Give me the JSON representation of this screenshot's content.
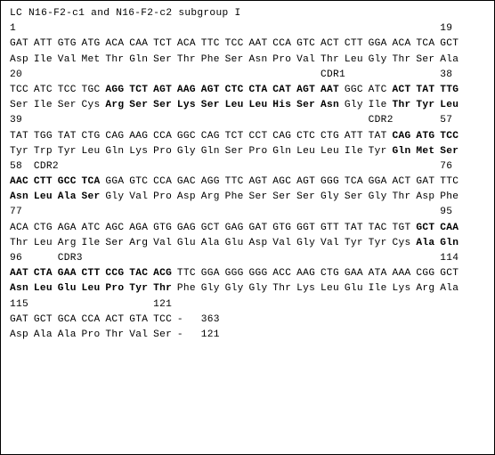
{
  "title": "LC N16-F2-c1 and N16-F2-c2 subgroup I",
  "cdr_labels": {
    "cdr1": "CDR1",
    "cdr2": "CDR2",
    "cdr3": "CDR3"
  },
  "blocks": [
    {
      "num_left": "1",
      "num_mid": "",
      "num_right": "19",
      "nuc": "GAT ATT GTG ATG ACA CAA TCT ACA TTC TCC AAT CCA GTC ACT CTT GGA ACA TCA GCT",
      "aa": "Asp Ile Val Met Thr Gln Ser Thr Phe Ser Asn Pro Val Thr Leu Gly Thr Ser Ala",
      "nuc_bold_cols": [],
      "aa_bold_cols": []
    },
    {
      "num_left": "20",
      "num_mid": "CDR1",
      "num_right": "38",
      "mid_align": "right-ish",
      "nuc": "TCC ATC TCC TGC AGG TCT AGT AAG AGT CTC CTA CAT AGT AAT GGC ATC ACT TAT TTG",
      "aa": "Ser Ile Ser Cys Arg Ser Ser Lys Ser Leu Leu His Ser Asn Gly Ile Thr Tyr Leu",
      "nuc_bold_cols": [
        4,
        5,
        6,
        7,
        8,
        9,
        10,
        11,
        12,
        13,
        16,
        17,
        18
      ],
      "aa_bold_cols": [
        4,
        5,
        6,
        7,
        8,
        9,
        10,
        11,
        12,
        13,
        16,
        17,
        18
      ]
    },
    {
      "num_left": "39",
      "num_mid": "CDR2",
      "num_right": "57",
      "mid_align": "right",
      "nuc": "TAT TGG TAT CTG CAG AAG CCA GGC CAG TCT CCT CAG CTC CTG ATT TAT CAG ATG TCC",
      "aa": "Tyr Trp Tyr Leu Gln Lys Pro Gly Gln Ser Pro Gln Leu Leu Ile Tyr Gln Met Ser",
      "nuc_bold_cols": [
        16,
        17,
        18
      ],
      "aa_bold_cols": [
        16,
        17,
        18
      ]
    },
    {
      "num_left": "58",
      "num_mid": "CDR2",
      "num_right": "76",
      "mid_align": "left",
      "nuc": "AAC CTT GCC TCA GGA GTC CCA GAC AGG TTC AGT AGC AGT GGG TCA GGA ACT GAT TTC",
      "aa": "Asn Leu Ala Ser Gly Val Pro Asp Arg Phe Ser Ser Ser Gly Ser Gly Thr Asp Phe",
      "nuc_bold_cols": [
        0,
        1,
        2,
        3
      ],
      "aa_bold_cols": [
        0,
        1,
        2,
        3
      ]
    },
    {
      "num_left": "77",
      "num_mid": "",
      "num_right": "95",
      "nuc": "ACA CTG AGA ATC AGC AGA GTG GAG GCT GAG GAT GTG GGT GTT TAT TAC TGT GCT CAA",
      "aa": "Thr Leu Arg Ile Ser Arg Val Glu Ala Glu Asp Val Gly Val Tyr Tyr Cys Ala Gln",
      "nuc_bold_cols": [
        17,
        18
      ],
      "aa_bold_cols": [
        17,
        18
      ]
    },
    {
      "num_left": "96",
      "num_mid": "CDR3",
      "num_right": "114",
      "mid_align": "left2",
      "nuc": "AAT CTA GAA CTT CCG TAC ACG TTC GGA GGG GGG ACC AAG CTG GAA ATA AAA CGG GCT",
      "aa": "Asn Leu Glu Leu Pro Tyr Thr Phe Gly Gly Gly Thr Lys Leu Glu Ile Lys Arg Ala",
      "nuc_bold_cols": [
        0,
        1,
        2,
        3,
        4,
        5,
        6
      ],
      "aa_bold_cols": [
        0,
        1,
        2,
        3,
        4,
        5,
        6
      ]
    },
    {
      "num_left": "115",
      "num_mid": "121",
      "num_right": "",
      "mid_align": "at7",
      "nuc": "GAT GCT GCA CCA ACT GTA TCC - 363",
      "aa": "Asp Ala Ala Pro Thr Val Ser - 121",
      "nuc_bold_cols": [],
      "aa_bold_cols": []
    }
  ],
  "layout": {
    "triplet_width_ch": 4
  }
}
